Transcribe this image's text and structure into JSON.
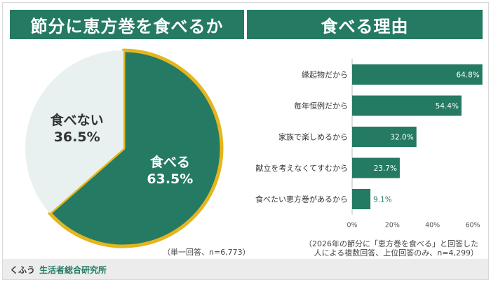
{
  "colors": {
    "brand_green": "#247a62",
    "pie_rest": "#e8f1ef",
    "pie_outline": "#e5b51d",
    "axis_text": "#333333"
  },
  "left_panel": {
    "title": "節分に恵方巻を食べるか",
    "note": "（単一回答、n=6,773）"
  },
  "right_panel": {
    "title": "食べる理由",
    "note_line1": "（2026年の節分に「恵方巻を食べる」と回答した",
    "note_line2": "人による複数回答、上位回答のみ、n=4,299）"
  },
  "footer": {
    "brand": "くふう",
    "name": "生活者総合研究所"
  },
  "chart_data": [
    {
      "type": "pie",
      "slices": [
        {
          "label": "食べる",
          "value": 63.5,
          "value_label": "63.5%",
          "color": "#247a62"
        },
        {
          "label": "食べない",
          "value": 36.5,
          "value_label": "36.5%",
          "color": "#e8f1ef"
        }
      ]
    },
    {
      "type": "bar",
      "orientation": "horizontal",
      "categories": [
        "縁起物だから",
        "毎年恒例だから",
        "家族で楽しめるから",
        "献立を考えなくてすむから",
        "食べたい恵方巻があるから"
      ],
      "values": [
        64.8,
        54.4,
        32.0,
        23.7,
        9.1
      ],
      "value_labels": [
        "64.8%",
        "54.4%",
        "32.0%",
        "23.7%",
        "9.1%"
      ],
      "xlim": [
        0,
        60
      ],
      "xticks": [
        "0%",
        "20%",
        "40%",
        "60%"
      ],
      "color": "#247a62"
    }
  ]
}
